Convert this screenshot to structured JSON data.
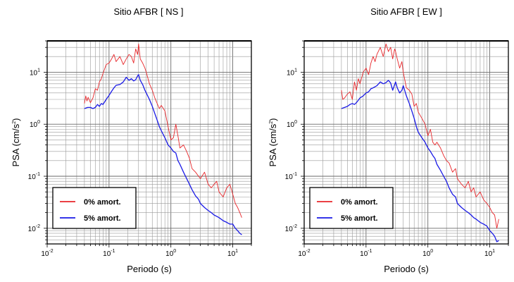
{
  "chart_data": [
    {
      "type": "line",
      "title": "Sitio AFBR [ NS ]",
      "xlabel": "Periodo (s)",
      "ylabel_base": "PSA (cm/s",
      "ylabel_exp": "2",
      "ylabel_end": ")",
      "x_scale": "log",
      "y_scale": "log",
      "xlim": [
        0.01,
        20
      ],
      "ylim": [
        0.005,
        40
      ],
      "x_ticks": [
        {
          "value": 0.01,
          "base": "10",
          "exp": "-2"
        },
        {
          "value": 0.1,
          "base": "10",
          "exp": "-1"
        },
        {
          "value": 1,
          "base": "10",
          "exp": "0"
        },
        {
          "value": 10,
          "base": "10",
          "exp": "1"
        }
      ],
      "y_ticks": [
        {
          "value": 0.01,
          "base": "10",
          "exp": "-2"
        },
        {
          "value": 0.1,
          "base": "10",
          "exp": "-1"
        },
        {
          "value": 1,
          "base": "10",
          "exp": "0"
        },
        {
          "value": 10,
          "base": "10",
          "exp": "1"
        }
      ],
      "grid": true,
      "legend_position": "bottom-left",
      "series": [
        {
          "name": "0% amort.",
          "color": "#e8262a",
          "x": [
            0.04,
            0.042,
            0.044,
            0.046,
            0.05,
            0.055,
            0.06,
            0.065,
            0.07,
            0.075,
            0.08,
            0.09,
            0.1,
            0.11,
            0.12,
            0.13,
            0.15,
            0.17,
            0.19,
            0.21,
            0.23,
            0.25,
            0.27,
            0.29,
            0.3,
            0.32,
            0.35,
            0.38,
            0.4,
            0.45,
            0.5,
            0.55,
            0.6,
            0.65,
            0.7,
            0.8,
            0.9,
            1.0,
            1.1,
            1.2,
            1.3,
            1.4,
            1.6,
            1.8,
            2.0,
            2.2,
            2.5,
            2.8,
            3.0,
            3.5,
            4.0,
            4.5,
            5.0,
            5.5,
            6.0,
            7.0,
            8.0,
            9.0,
            10.0,
            11.0,
            12.0,
            13.0,
            14.0
          ],
          "y": [
            2.5,
            3.5,
            2.8,
            3.3,
            2.6,
            3.2,
            4.8,
            4.5,
            6.5,
            7.5,
            9.5,
            14,
            15,
            18,
            22,
            16,
            20,
            14,
            18,
            22,
            20,
            15,
            28,
            22,
            35,
            18,
            15,
            12,
            10,
            6,
            4.5,
            3.2,
            2.5,
            2.0,
            2.3,
            1.8,
            0.9,
            0.5,
            0.55,
            1.0,
            0.6,
            0.35,
            0.4,
            0.3,
            0.22,
            0.14,
            0.12,
            0.1,
            0.09,
            0.12,
            0.07,
            0.06,
            0.07,
            0.08,
            0.05,
            0.04,
            0.06,
            0.07,
            0.045,
            0.03,
            0.025,
            0.02,
            0.016
          ]
        },
        {
          "name": "5% amort.",
          "color": "#1a1ae6",
          "x": [
            0.04,
            0.045,
            0.05,
            0.055,
            0.06,
            0.065,
            0.07,
            0.075,
            0.08,
            0.09,
            0.1,
            0.11,
            0.12,
            0.13,
            0.15,
            0.17,
            0.19,
            0.21,
            0.23,
            0.25,
            0.27,
            0.29,
            0.3,
            0.32,
            0.35,
            0.38,
            0.4,
            0.45,
            0.5,
            0.55,
            0.6,
            0.65,
            0.7,
            0.8,
            0.9,
            1.0,
            1.1,
            1.2,
            1.3,
            1.4,
            1.6,
            1.8,
            2.0,
            2.2,
            2.5,
            2.8,
            3.0,
            3.5,
            4.0,
            4.5,
            5.0,
            5.5,
            6.0,
            7.0,
            8.0,
            9.0,
            10.0,
            11.0,
            12.0,
            13.0,
            14.0
          ],
          "y": [
            2.0,
            2.1,
            2.1,
            2.0,
            2.1,
            2.4,
            2.2,
            2.5,
            2.4,
            3.0,
            3.6,
            4.3,
            5.0,
            5.6,
            5.8,
            6.5,
            8.0,
            7.0,
            7.5,
            6.8,
            7.2,
            8.5,
            9.0,
            7.0,
            5.8,
            4.5,
            4.0,
            3.0,
            2.2,
            1.6,
            1.2,
            0.9,
            0.75,
            0.55,
            0.4,
            0.35,
            0.3,
            0.28,
            0.2,
            0.17,
            0.12,
            0.09,
            0.07,
            0.055,
            0.042,
            0.036,
            0.03,
            0.025,
            0.022,
            0.02,
            0.018,
            0.017,
            0.016,
            0.014,
            0.013,
            0.012,
            0.012,
            0.01,
            0.009,
            0.008,
            0.0075
          ]
        }
      ]
    },
    {
      "type": "line",
      "title": "Sitio AFBR [ EW ]",
      "xlabel": "Periodo (s)",
      "ylabel_base": "PSA (cm/s",
      "ylabel_exp": "2",
      "ylabel_end": ")",
      "x_scale": "log",
      "y_scale": "log",
      "xlim": [
        0.01,
        20
      ],
      "ylim": [
        0.005,
        40
      ],
      "x_ticks": [
        {
          "value": 0.01,
          "base": "10",
          "exp": "-2"
        },
        {
          "value": 0.1,
          "base": "10",
          "exp": "-1"
        },
        {
          "value": 1,
          "base": "10",
          "exp": "0"
        },
        {
          "value": 10,
          "base": "10",
          "exp": "1"
        }
      ],
      "y_ticks": [
        {
          "value": 0.01,
          "base": "10",
          "exp": "-2"
        },
        {
          "value": 0.1,
          "base": "10",
          "exp": "-1"
        },
        {
          "value": 1,
          "base": "10",
          "exp": "0"
        },
        {
          "value": 10,
          "base": "10",
          "exp": "1"
        }
      ],
      "grid": true,
      "legend_position": "bottom-left",
      "series": [
        {
          "name": "0% amort.",
          "color": "#e8262a",
          "x": [
            0.04,
            0.042,
            0.045,
            0.05,
            0.055,
            0.06,
            0.065,
            0.07,
            0.075,
            0.08,
            0.09,
            0.1,
            0.11,
            0.12,
            0.13,
            0.14,
            0.15,
            0.17,
            0.19,
            0.21,
            0.23,
            0.25,
            0.27,
            0.29,
            0.3,
            0.32,
            0.35,
            0.38,
            0.4,
            0.45,
            0.5,
            0.55,
            0.6,
            0.65,
            0.7,
            0.8,
            0.9,
            1.0,
            1.1,
            1.2,
            1.3,
            1.4,
            1.6,
            1.8,
            2.0,
            2.2,
            2.5,
            2.8,
            3.0,
            3.5,
            4.0,
            4.5,
            5.0,
            5.5,
            6.0,
            7.0,
            8.0,
            9.0,
            10.0,
            11.0,
            12.0,
            13.0,
            14.0
          ],
          "y": [
            4.5,
            3.0,
            3.2,
            3.8,
            4.2,
            3.0,
            6.5,
            4.5,
            7.5,
            6.0,
            10,
            12,
            9,
            15,
            20,
            16,
            22,
            30,
            20,
            35,
            25,
            30,
            18,
            28,
            25,
            18,
            12,
            16,
            10,
            5,
            4.5,
            3.8,
            2.2,
            2.5,
            1.7,
            1.3,
            1.0,
            0.6,
            0.8,
            0.45,
            0.4,
            0.45,
            0.35,
            0.25,
            0.2,
            0.18,
            0.12,
            0.14,
            0.09,
            0.07,
            0.06,
            0.08,
            0.05,
            0.06,
            0.04,
            0.05,
            0.035,
            0.03,
            0.025,
            0.02,
            0.018,
            0.01,
            0.015
          ]
        },
        {
          "name": "5% amort.",
          "color": "#1a1ae6",
          "x": [
            0.04,
            0.045,
            0.05,
            0.055,
            0.06,
            0.065,
            0.07,
            0.075,
            0.08,
            0.09,
            0.1,
            0.11,
            0.12,
            0.13,
            0.15,
            0.17,
            0.19,
            0.21,
            0.23,
            0.25,
            0.27,
            0.29,
            0.3,
            0.32,
            0.35,
            0.38,
            0.4,
            0.45,
            0.5,
            0.55,
            0.6,
            0.65,
            0.7,
            0.8,
            0.9,
            1.0,
            1.1,
            1.2,
            1.3,
            1.4,
            1.6,
            1.8,
            2.0,
            2.2,
            2.5,
            2.8,
            3.0,
            3.5,
            4.0,
            4.5,
            5.0,
            5.5,
            6.0,
            7.0,
            8.0,
            9.0,
            10.0,
            11.0,
            12.0,
            13.0,
            14.0
          ],
          "y": [
            2.0,
            2.1,
            2.2,
            2.4,
            2.5,
            2.4,
            2.6,
            2.9,
            3.2,
            3.5,
            4.0,
            4.2,
            4.8,
            5.0,
            5.5,
            6.5,
            6.0,
            6.3,
            7.0,
            6.2,
            4.5,
            5.8,
            6.5,
            5.0,
            4.0,
            4.5,
            5.5,
            3.5,
            2.5,
            1.8,
            1.3,
            0.9,
            0.7,
            0.55,
            0.45,
            0.35,
            0.3,
            0.25,
            0.22,
            0.17,
            0.13,
            0.1,
            0.08,
            0.06,
            0.045,
            0.04,
            0.03,
            0.025,
            0.022,
            0.02,
            0.018,
            0.016,
            0.015,
            0.013,
            0.012,
            0.011,
            0.009,
            0.008,
            0.007,
            0.0055,
            0.0058
          ]
        }
      ]
    }
  ]
}
